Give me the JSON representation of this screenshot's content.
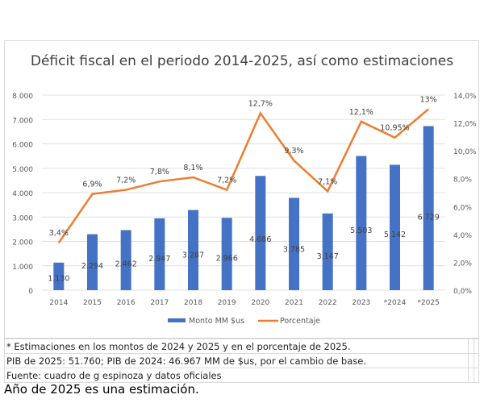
{
  "chart_data": {
    "type": "bar+line",
    "title": "Déficit fiscal en el periodo 2014-2025, así como estimaciones",
    "categories": [
      "2014",
      "2015",
      "2016",
      "2017",
      "2018",
      "2019",
      "2020",
      "2021",
      "2022",
      "2023",
      "*2024",
      "*2025"
    ],
    "series": [
      {
        "name": "Monto MM $us",
        "type": "bar",
        "color": "#4472c4",
        "axis": "left",
        "values": [
          1130,
          2294,
          2462,
          2947,
          3287,
          2966,
          4686,
          3785,
          3147,
          5503,
          5142,
          6729
        ],
        "labels": [
          "1.130",
          "2.294",
          "2.462",
          "2.947",
          "3.287",
          "2.966",
          "4.686",
          "3.785",
          "3.147",
          "5.503",
          "5.142",
          "6.729"
        ]
      },
      {
        "name": "Porcentaje",
        "type": "line",
        "color": "#ed7d31",
        "axis": "right",
        "values": [
          3.4,
          6.9,
          7.2,
          7.8,
          8.1,
          7.2,
          12.7,
          9.3,
          7.1,
          12.1,
          10.95,
          13
        ],
        "labels": [
          "3,4%",
          "6,9%",
          "7,2%",
          "7,8%",
          "8,1%",
          "7,2%",
          "12,7%",
          "9,3%",
          "7,1%",
          "12,1%",
          "10,95%",
          "13%"
        ]
      }
    ],
    "ylim_left": [
      0,
      8000
    ],
    "yticks_left": [
      "0",
      "1.000",
      "2.000",
      "3.000",
      "4.000",
      "5.000",
      "6.000",
      "7.000",
      "8.000"
    ],
    "ylim_right": [
      0,
      14
    ],
    "yticks_right": [
      "0,0%",
      "2,0%",
      "4,0%",
      "6,0%",
      "8,0%",
      "10,0%",
      "12,0%",
      "14,0%"
    ],
    "grid": true,
    "legend": "bottom"
  },
  "notes": [
    "* Estimaciones en los montos de 2024 y 2025 y en el porcentaje de 2025.",
    "PIB de 2025: 51.760; PIB de 2024: 46.967 MM de $us, por el cambio de base.",
    "Fuente: cuadro de g espinoza y datos oficiales"
  ],
  "caption": "Año de 2025 es una estimación."
}
